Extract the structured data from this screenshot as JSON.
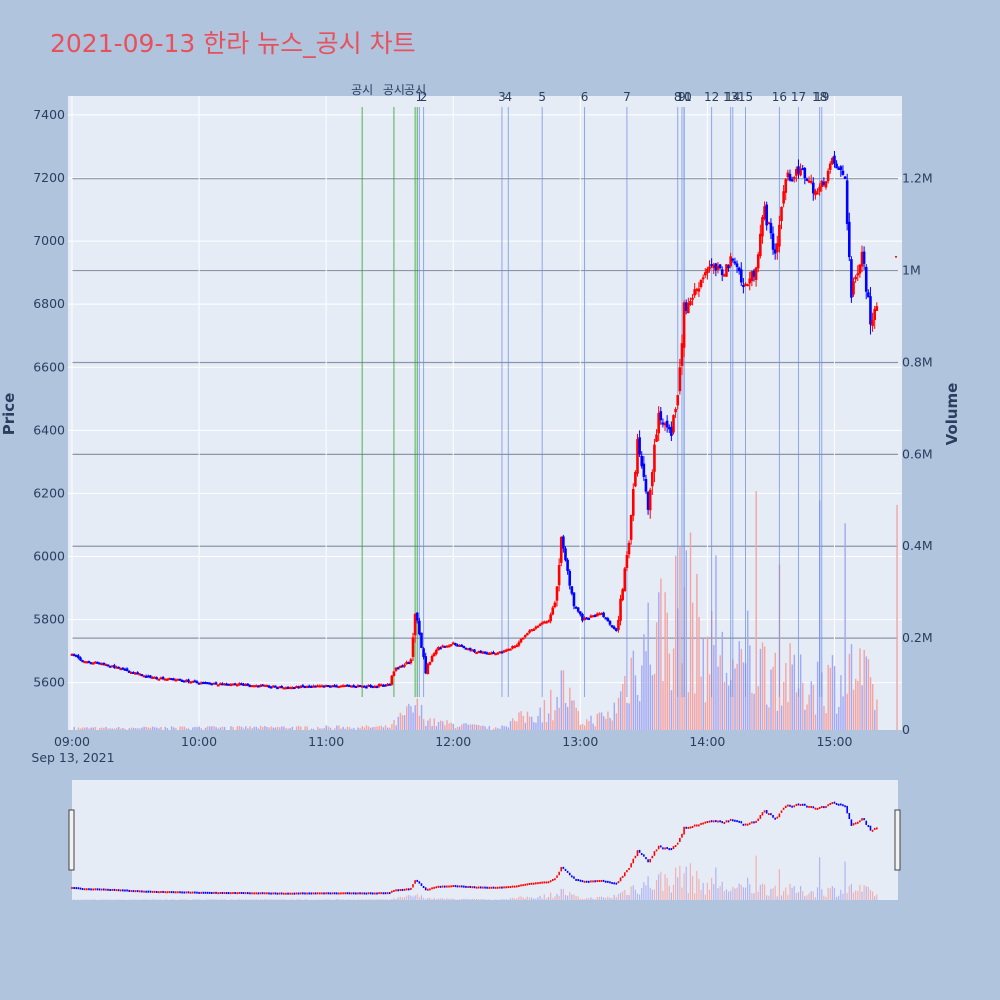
{
  "title": "2021-09-13 한라 뉴스_공시 차트",
  "colors": {
    "background": "#b0c4de",
    "plot_bg": "#e5ecf6",
    "title": "#e8505b",
    "up": "#ff0000",
    "down": "#0000ff",
    "disclosure_line": "#2ca02c",
    "news_line": "#6f8fe8",
    "volume_up": "#f4a3a3",
    "volume_down": "#a3a8f4"
  },
  "chart_data": {
    "type": "candlestick",
    "ylabel": "Price",
    "y2label": "Volume",
    "ylim": [
      5450,
      7460
    ],
    "y2lim": [
      0,
      1380000
    ],
    "xlim": [
      "09:00",
      "15:30"
    ],
    "x_ticks": [
      "09:00",
      "10:00",
      "11:00",
      "12:00",
      "13:00",
      "14:00",
      "15:00"
    ],
    "x_date_label": "Sep 13, 2021",
    "y_ticks": [
      5600,
      5800,
      6000,
      6200,
      6400,
      6600,
      6800,
      7000,
      7200,
      7400
    ],
    "y2_ticks": [
      {
        "value": 0,
        "label": "0"
      },
      {
        "value": 200000,
        "label": "0.2M"
      },
      {
        "value": 400000,
        "label": "0.4M"
      },
      {
        "value": 600000,
        "label": "0.6M"
      },
      {
        "value": 800000,
        "label": "0.8M"
      },
      {
        "value": 1000000,
        "label": "1M"
      },
      {
        "value": 1200000,
        "label": "1.2M"
      }
    ],
    "price_path": [
      [
        "09:00",
        5690
      ],
      [
        "09:05",
        5670
      ],
      [
        "09:15",
        5660
      ],
      [
        "09:25",
        5640
      ],
      [
        "09:35",
        5620
      ],
      [
        "09:50",
        5610
      ],
      [
        "10:00",
        5600
      ],
      [
        "10:20",
        5595
      ],
      [
        "10:40",
        5585
      ],
      [
        "11:00",
        5590
      ],
      [
        "11:20",
        5590
      ],
      [
        "11:30",
        5595
      ],
      [
        "11:32",
        5640
      ],
      [
        "11:40",
        5670
      ],
      [
        "11:42",
        5830
      ],
      [
        "11:47",
        5640
      ],
      [
        "11:52",
        5710
      ],
      [
        "12:00",
        5725
      ],
      [
        "12:10",
        5700
      ],
      [
        "12:20",
        5690
      ],
      [
        "12:30",
        5720
      ],
      [
        "12:35",
        5760
      ],
      [
        "12:45",
        5800
      ],
      [
        "12:48",
        5850
      ],
      [
        "12:51",
        6050
      ],
      [
        "12:57",
        5850
      ],
      [
        "13:01",
        5800
      ],
      [
        "13:10",
        5820
      ],
      [
        "13:17",
        5760
      ],
      [
        "13:23",
        6050
      ],
      [
        "13:27",
        6380
      ],
      [
        "13:32",
        6150
      ],
      [
        "13:37",
        6450
      ],
      [
        "13:43",
        6390
      ],
      [
        "13:46",
        6530
      ],
      [
        "13:49",
        6780
      ],
      [
        "13:55",
        6850
      ],
      [
        "14:00",
        6920
      ],
      [
        "14:07",
        6900
      ],
      [
        "14:13",
        6950
      ],
      [
        "14:17",
        6850
      ],
      [
        "14:22",
        6900
      ],
      [
        "14:27",
        7100
      ],
      [
        "14:32",
        6960
      ],
      [
        "14:37",
        7200
      ],
      [
        "14:45",
        7220
      ],
      [
        "14:52",
        7150
      ],
      [
        "14:59",
        7250
      ],
      [
        "15:05",
        7200
      ],
      [
        "15:08",
        6820
      ],
      [
        "15:13",
        6980
      ],
      [
        "15:17",
        6750
      ],
      [
        "15:22",
        6850
      ]
    ],
    "volume_path": [
      [
        "09:00",
        5000
      ],
      [
        "11:30",
        8000
      ],
      [
        "11:42",
        60000
      ],
      [
        "11:50",
        20000
      ],
      [
        "12:20",
        5000
      ],
      [
        "12:45",
        60000
      ],
      [
        "12:51",
        120000
      ],
      [
        "13:00",
        20000
      ],
      [
        "13:15",
        40000
      ],
      [
        "13:25",
        180000
      ],
      [
        "13:35",
        260000
      ],
      [
        "13:48",
        320000
      ],
      [
        "14:00",
        210000
      ],
      [
        "14:15",
        150000
      ],
      [
        "14:30",
        170000
      ],
      [
        "14:45",
        120000
      ],
      [
        "15:00",
        140000
      ],
      [
        "15:10",
        160000
      ],
      [
        "15:20",
        90000
      ]
    ],
    "volume_spikes": [
      [
        "13:47",
        400000
      ],
      [
        "13:52",
        430000
      ],
      [
        "14:04",
        380000
      ],
      [
        "14:19",
        260000
      ],
      [
        "14:23",
        520000
      ],
      [
        "14:34",
        360000
      ],
      [
        "14:53",
        500000
      ],
      [
        "15:05",
        450000
      ],
      [
        "15:29",
        490000
      ]
    ],
    "disclosure_markers": [
      {
        "time": "11:17",
        "label": "공시"
      },
      {
        "time": "11:32",
        "label": "공시"
      },
      {
        "time": "11:42",
        "label": "공시"
      },
      {
        "time": "11:43",
        "label": ""
      }
    ],
    "news_markers": [
      {
        "time": "11:44",
        "label": "1"
      },
      {
        "time": "11:46",
        "label": "2"
      },
      {
        "time": "12:23",
        "label": "3"
      },
      {
        "time": "12:26",
        "label": "4"
      },
      {
        "time": "12:42",
        "label": "5"
      },
      {
        "time": "13:02",
        "label": "6"
      },
      {
        "time": "13:22",
        "label": "7"
      },
      {
        "time": "13:46",
        "label": "8"
      },
      {
        "time": "13:48",
        "label": "9"
      },
      {
        "time": "13:49",
        "label": "10"
      },
      {
        "time": "13:49",
        "label": "11"
      },
      {
        "time": "14:02",
        "label": "12"
      },
      {
        "time": "14:11",
        "label": "13"
      },
      {
        "time": "14:12",
        "label": "14"
      },
      {
        "time": "14:18",
        "label": "15"
      },
      {
        "time": "14:34",
        "label": "16"
      },
      {
        "time": "14:43",
        "label": "17"
      },
      {
        "time": "14:53",
        "label": "18"
      },
      {
        "time": "14:54",
        "label": "19"
      }
    ]
  }
}
